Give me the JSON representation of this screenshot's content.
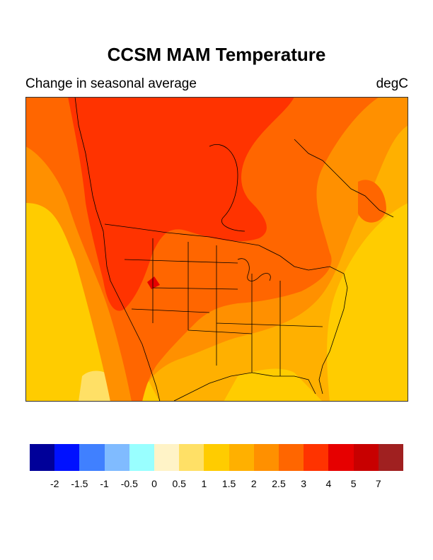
{
  "title": "CCSM MAM Temperature",
  "subtitle_left": "Change in seasonal average",
  "subtitle_right": "degC",
  "colorbar": {
    "colors": [
      "#000099",
      "#0011ff",
      "#4080ff",
      "#80bbff",
      "#99ffff",
      "#fff3c7",
      "#ffe066",
      "#ffcc00",
      "#ffb000",
      "#ff9000",
      "#ff6600",
      "#ff3300",
      "#e60000",
      "#c80000",
      "#a02020"
    ],
    "labels": [
      "-2",
      "-1.5",
      "-1",
      "-0.5",
      "0",
      "0.5",
      "1",
      "1.5",
      "2",
      "2.5",
      "3",
      "4",
      "5",
      "7"
    ]
  },
  "map": {
    "colors": {
      "c05_1": "#ffe066",
      "c1_15": "#ffcc00",
      "c15_2": "#ffb000",
      "c2_25": "#ff9000",
      "c25_3": "#ff6600",
      "c3_4": "#ff3300",
      "c4_5": "#e60000"
    }
  }
}
